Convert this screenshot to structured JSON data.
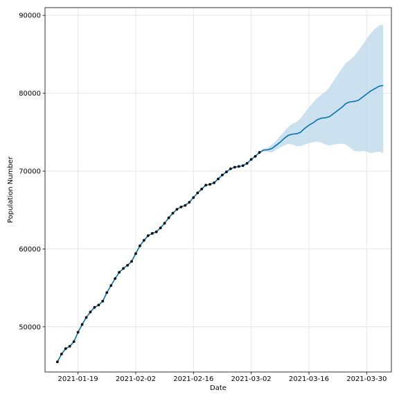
{
  "chart_data": {
    "type": "line",
    "title": "",
    "xlabel": "Date",
    "ylabel": "Population Number",
    "x_tick_labels": [
      "2021-01-19",
      "2021-02-02",
      "2021-02-16",
      "2021-03-02",
      "2021-03-16",
      "2021-03-30"
    ],
    "y_tick_labels": [
      "50000",
      "60000",
      "70000",
      "80000",
      "90000"
    ],
    "xlim": [
      "2021-01-11",
      "2021-04-05"
    ],
    "ylim": [
      44200,
      91000
    ],
    "grid": true,
    "colors": {
      "forecast_line": "#0072B2",
      "uncertainty_band": "#b9d7ea",
      "observed_points": "#000000",
      "grid": "#e6e6e6"
    },
    "observed": {
      "x": [
        "2021-01-14",
        "2021-01-15",
        "2021-01-16",
        "2021-01-17",
        "2021-01-18",
        "2021-01-19",
        "2021-01-20",
        "2021-01-21",
        "2021-01-22",
        "2021-01-23",
        "2021-01-24",
        "2021-01-25",
        "2021-01-26",
        "2021-01-27",
        "2021-01-28",
        "2021-01-29",
        "2021-01-30",
        "2021-01-31",
        "2021-02-01",
        "2021-02-02",
        "2021-02-03",
        "2021-02-04",
        "2021-02-05",
        "2021-02-06",
        "2021-02-07",
        "2021-02-08",
        "2021-02-09",
        "2021-02-10",
        "2021-02-11",
        "2021-02-12",
        "2021-02-13",
        "2021-02-14",
        "2021-02-15",
        "2021-02-16",
        "2021-02-17",
        "2021-02-18",
        "2021-02-19",
        "2021-02-20",
        "2021-02-21",
        "2021-02-22",
        "2021-02-23",
        "2021-02-24",
        "2021-02-25",
        "2021-02-26",
        "2021-02-27",
        "2021-02-28",
        "2021-03-01",
        "2021-03-02",
        "2021-03-03",
        "2021-03-04"
      ],
      "y": [
        45500,
        46500,
        47200,
        47500,
        48100,
        49300,
        50300,
        51200,
        51900,
        52500,
        52800,
        53300,
        54400,
        55300,
        56200,
        57000,
        57500,
        57900,
        58400,
        59400,
        60400,
        61100,
        61700,
        62000,
        62200,
        62700,
        63300,
        64000,
        64600,
        65100,
        65400,
        65600,
        66000,
        66600,
        67200,
        67700,
        68200,
        68300,
        68500,
        69000,
        69500,
        69900,
        70300,
        70500,
        70600,
        70700,
        71000,
        71500,
        71900,
        72400
      ]
    },
    "series": [
      {
        "x": [
          "2021-01-14",
          "2021-01-15",
          "2021-01-16",
          "2021-01-17",
          "2021-01-18",
          "2021-01-19",
          "2021-01-20",
          "2021-01-21",
          "2021-01-22",
          "2021-01-23",
          "2021-01-24",
          "2021-01-25",
          "2021-01-26",
          "2021-01-27",
          "2021-01-28",
          "2021-01-29",
          "2021-01-30",
          "2021-01-31",
          "2021-02-01",
          "2021-02-02",
          "2021-02-03",
          "2021-02-04",
          "2021-02-05",
          "2021-02-06",
          "2021-02-07",
          "2021-02-08",
          "2021-02-09",
          "2021-02-10",
          "2021-02-11",
          "2021-02-12",
          "2021-02-13",
          "2021-02-14",
          "2021-02-15",
          "2021-02-16",
          "2021-02-17",
          "2021-02-18",
          "2021-02-19",
          "2021-02-20",
          "2021-02-21",
          "2021-02-22",
          "2021-02-23",
          "2021-02-24",
          "2021-02-25",
          "2021-02-26",
          "2021-02-27",
          "2021-02-28",
          "2021-03-01",
          "2021-03-02",
          "2021-03-03",
          "2021-03-04",
          "2021-03-05",
          "2021-03-06",
          "2021-03-07",
          "2021-03-08",
          "2021-03-09",
          "2021-03-10",
          "2021-03-11",
          "2021-03-12",
          "2021-03-13",
          "2021-03-14",
          "2021-03-15",
          "2021-03-16",
          "2021-03-17",
          "2021-03-18",
          "2021-03-19",
          "2021-03-20",
          "2021-03-21",
          "2021-03-22",
          "2021-03-23",
          "2021-03-24",
          "2021-03-25",
          "2021-03-26",
          "2021-03-27",
          "2021-03-28",
          "2021-03-29",
          "2021-03-30",
          "2021-03-31",
          "2021-04-01",
          "2021-04-02",
          "2021-04-03"
        ],
        "yhat": [
          45500,
          46500,
          47200,
          47500,
          48100,
          49300,
          50300,
          51200,
          51900,
          52500,
          52800,
          53300,
          54400,
          55300,
          56200,
          57000,
          57500,
          57900,
          58400,
          59400,
          60400,
          61100,
          61700,
          62000,
          62200,
          62700,
          63300,
          64000,
          64600,
          65100,
          65400,
          65600,
          66000,
          66600,
          67200,
          67700,
          68200,
          68300,
          68500,
          69000,
          69500,
          69900,
          70300,
          70500,
          70600,
          70700,
          71000,
          71500,
          71900,
          72400,
          72700,
          72750,
          72900,
          73300,
          73700,
          74200,
          74600,
          74750,
          74800,
          75000,
          75500,
          75900,
          76200,
          76600,
          76800,
          76850,
          77000,
          77400,
          77800,
          78200,
          78700,
          78900,
          78950,
          79100,
          79500,
          79900,
          80300,
          80600,
          80900,
          81000
        ],
        "yhat_lower": [
          45500,
          46500,
          47200,
          47500,
          48100,
          49300,
          50300,
          51200,
          51900,
          52500,
          52800,
          53300,
          54400,
          55300,
          56200,
          57000,
          57500,
          57900,
          58400,
          59400,
          60400,
          61100,
          61700,
          62000,
          62200,
          62700,
          63300,
          64000,
          64600,
          65100,
          65400,
          65600,
          66000,
          66600,
          67200,
          67700,
          68200,
          68300,
          68500,
          69000,
          69500,
          69900,
          70300,
          70500,
          70600,
          70700,
          71000,
          71500,
          71900,
          72350,
          72500,
          72450,
          72400,
          72700,
          73000,
          73300,
          73500,
          73400,
          73200,
          73200,
          73400,
          73600,
          73700,
          73800,
          73700,
          73400,
          73300,
          73400,
          73500,
          73500,
          73400,
          73000,
          72600,
          72500,
          72600,
          72500,
          72300,
          72400,
          72500,
          72300
        ],
        "yhat_upper": [
          45500,
          46500,
          47200,
          47500,
          48100,
          49300,
          50300,
          51200,
          51900,
          52500,
          52800,
          53300,
          54400,
          55300,
          56200,
          57000,
          57500,
          57900,
          58400,
          59400,
          60400,
          61100,
          61700,
          62000,
          62200,
          62700,
          63300,
          64000,
          64600,
          65100,
          65400,
          65600,
          66000,
          66600,
          67200,
          67700,
          68200,
          68300,
          68500,
          69000,
          69500,
          69900,
          70300,
          70500,
          70600,
          70700,
          71000,
          71500,
          71900,
          72450,
          72850,
          73000,
          73400,
          73900,
          74500,
          75100,
          75700,
          76100,
          76300,
          76800,
          77500,
          78200,
          78800,
          79400,
          79800,
          80200,
          80800,
          81600,
          82400,
          83200,
          83900,
          84300,
          84800,
          85500,
          86200,
          87000,
          87700,
          88300,
          88700,
          88800
        ]
      }
    ]
  }
}
